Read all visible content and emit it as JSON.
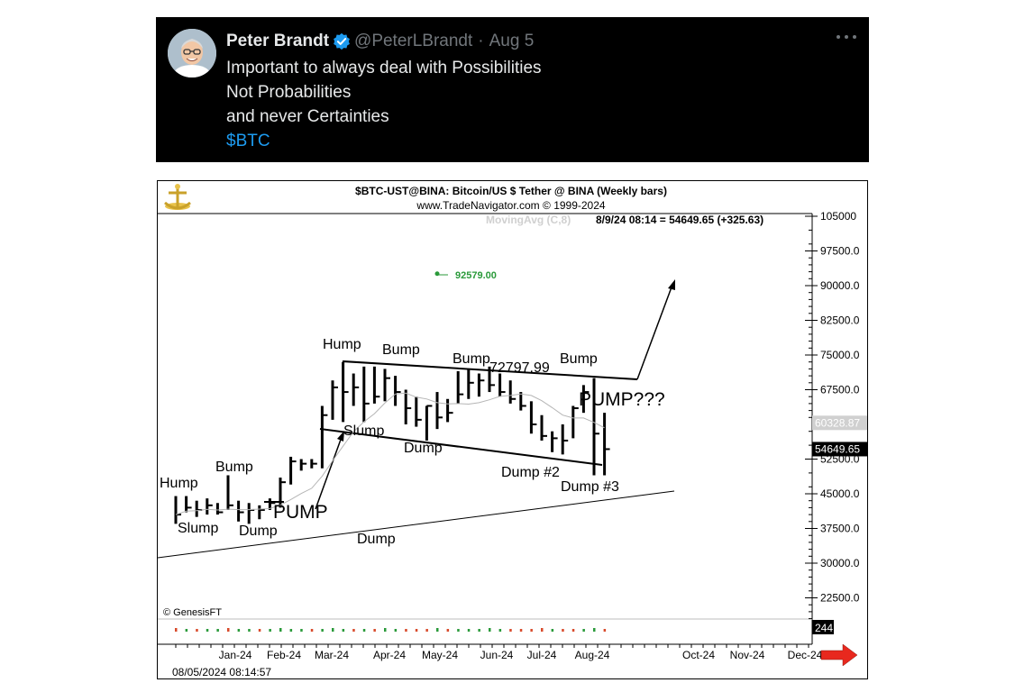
{
  "tweet": {
    "author_name": "Peter Brandt",
    "handle": "@PeterLBrandt",
    "separator": "·",
    "date": "Aug 5",
    "lines": [
      "Important to always deal with Possibilities",
      "Not Probabilities",
      "and never Certainties"
    ],
    "cashtag": "$BTC"
  },
  "chart_data": {
    "type": "bar",
    "title": "$BTC-UST@BINA:  Bitcoin/US $ Tether @ BINA  (Weekly bars)",
    "subtitle": "www.TradeNavigator.com © 1999-2024",
    "indicator": "MovingAvg (C,8)",
    "last_quote": "8/9/24 08:14 = 54649.65 (+325.63)",
    "y_ticks": [
      "105000",
      "97500.0",
      "90000.0",
      "82500.0",
      "75000.0",
      "67500.0",
      "60328.87",
      "54649.65",
      "52500.0",
      "45000.0",
      "37500.0",
      "30000.0",
      "22500.0"
    ],
    "x_ticks": [
      "Jan-24",
      "Feb-24",
      "Mar-24",
      "Apr-24",
      "May-24",
      "Jun-24",
      "Jul-24",
      "Aug-24",
      "Oct-24",
      "Nov-24",
      "Dec-24"
    ],
    "ylim": [
      14000,
      107000
    ],
    "price_marker": {
      "value": 92579.0,
      "label": "92579.00"
    },
    "high_label": "72797.99",
    "annotations": [
      "Hump",
      "Bump",
      "Slump",
      "Dump",
      "PUMP",
      "Hump",
      "Slump",
      "Bump",
      "Dump",
      "Bump",
      "Dump #2",
      "Bump",
      "Dump #3",
      "PUMP???",
      "Dump"
    ],
    "weekly_bars": [
      {
        "h": 44500,
        "l": 38500,
        "c": 40500
      },
      {
        "h": 44500,
        "l": 41000,
        "c": 42000
      },
      {
        "h": 43500,
        "l": 40000,
        "c": 41500
      },
      {
        "h": 44000,
        "l": 40500,
        "c": 42500
      },
      {
        "h": 43000,
        "l": 40500,
        "c": 41000
      },
      {
        "h": 49000,
        "l": 41500,
        "c": 42500
      },
      {
        "h": 43500,
        "l": 39000,
        "c": 41000
      },
      {
        "h": 43000,
        "l": 38500,
        "c": 41500
      },
      {
        "h": 42500,
        "l": 39500,
        "c": 41500
      },
      {
        "h": 44000,
        "l": 41500,
        "c": 43000
      },
      {
        "h": 48500,
        "l": 42000,
        "c": 47500
      },
      {
        "h": 53000,
        "l": 47000,
        "c": 52000
      },
      {
        "h": 52500,
        "l": 50000,
        "c": 51500
      },
      {
        "h": 52500,
        "l": 50500,
        "c": 51500
      },
      {
        "h": 64000,
        "l": 50500,
        "c": 62000
      },
      {
        "h": 69500,
        "l": 61000,
        "c": 68000
      },
      {
        "h": 73500,
        "l": 60500,
        "c": 67000
      },
      {
        "h": 71000,
        "l": 64000,
        "c": 68000
      },
      {
        "h": 72500,
        "l": 60500,
        "c": 64500
      },
      {
        "h": 72500,
        "l": 64500,
        "c": 66000
      },
      {
        "h": 72000,
        "l": 65000,
        "c": 70000
      },
      {
        "h": 70500,
        "l": 64000,
        "c": 67000
      },
      {
        "h": 67500,
        "l": 60000,
        "c": 63500
      },
      {
        "h": 66000,
        "l": 59500,
        "c": 61000
      },
      {
        "h": 64000,
        "l": 56500,
        "c": 64000
      },
      {
        "h": 67000,
        "l": 59000,
        "c": 61500
      },
      {
        "h": 65500,
        "l": 60500,
        "c": 62500
      },
      {
        "h": 71500,
        "l": 64500,
        "c": 66500
      },
      {
        "h": 72000,
        "l": 65500,
        "c": 69000
      },
      {
        "h": 71000,
        "l": 66000,
        "c": 69500
      },
      {
        "h": 72500,
        "l": 67000,
        "c": 68500
      },
      {
        "h": 71000,
        "l": 66000,
        "c": 67000
      },
      {
        "h": 69500,
        "l": 64500,
        "c": 65500
      },
      {
        "h": 67000,
        "l": 63000,
        "c": 64000
      },
      {
        "h": 65000,
        "l": 58000,
        "c": 60000
      },
      {
        "h": 62000,
        "l": 56500,
        "c": 57500
      },
      {
        "h": 58500,
        "l": 54000,
        "c": 57000
      },
      {
        "h": 60000,
        "l": 53500,
        "c": 56500
      },
      {
        "h": 64000,
        "l": 57000,
        "c": 63500
      },
      {
        "h": 68500,
        "l": 62500,
        "c": 67000
      },
      {
        "h": 70000,
        "l": 49000,
        "c": 58000
      },
      {
        "h": 62500,
        "l": 49000,
        "c": 54649.65
      }
    ],
    "volume_bars": [
      "#d84a2b",
      "#2a9a3a",
      "#d84a2b",
      "#2a9a3a",
      "#2a9a3a",
      "#d84a2b",
      "#2a9a3a",
      "#2a9a3a",
      "#d84a2b",
      "#2a9a3a",
      "#2a9a3a",
      "#2a9a3a",
      "#2a9a3a",
      "#d84a2b",
      "#2a9a3a",
      "#2a9a3a",
      "#2a9a3a",
      "#d84a2b",
      "#2a9a3a",
      "#d84a2b",
      "#2a9a3a",
      "#2a9a3a",
      "#d84a2b",
      "#d84a2b",
      "#d84a2b",
      "#2a9a3a",
      "#d84a2b",
      "#2a9a3a",
      "#2a9a3a",
      "#2a9a3a",
      "#2a9a3a",
      "#2a9a3a",
      "#d84a2b",
      "#d84a2b",
      "#d84a2b",
      "#d84a2b",
      "#2a9a3a",
      "#d84a2b",
      "#d84a2b",
      "#2a9a3a",
      "#2a9a3a",
      "#d84a2b"
    ],
    "volume_value": "244",
    "copyright": "© GenesisFT",
    "footer_timestamp": "08/05/2024 08:14:57",
    "grid": false
  }
}
